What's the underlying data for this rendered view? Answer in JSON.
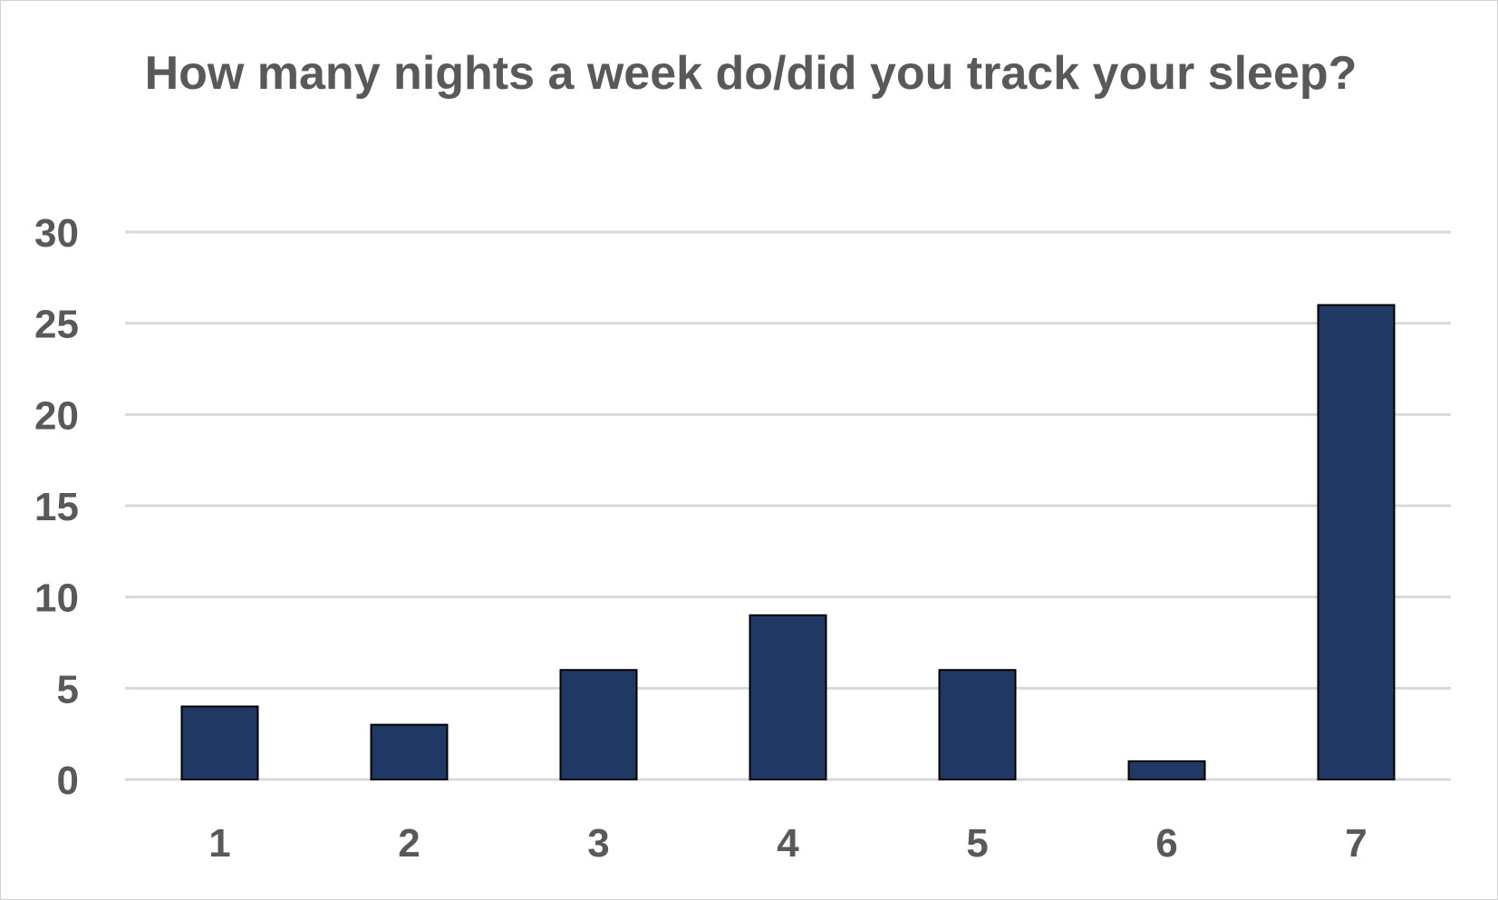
{
  "chart_data": {
    "type": "bar",
    "title": "How many nights a week do/did you track your sleep?",
    "categories": [
      "1",
      "2",
      "3",
      "4",
      "5",
      "6",
      "7"
    ],
    "values": [
      4,
      3,
      6,
      9,
      6,
      1,
      26
    ],
    "ylim": [
      0,
      30
    ],
    "yticks": [
      "0",
      "5",
      "10",
      "15",
      "20",
      "25",
      "30"
    ],
    "grid": true,
    "bar_color": "#203864",
    "bar_edge_color": "#000000",
    "gridline_color": "#d9d9d9",
    "text_color": "#595959"
  }
}
